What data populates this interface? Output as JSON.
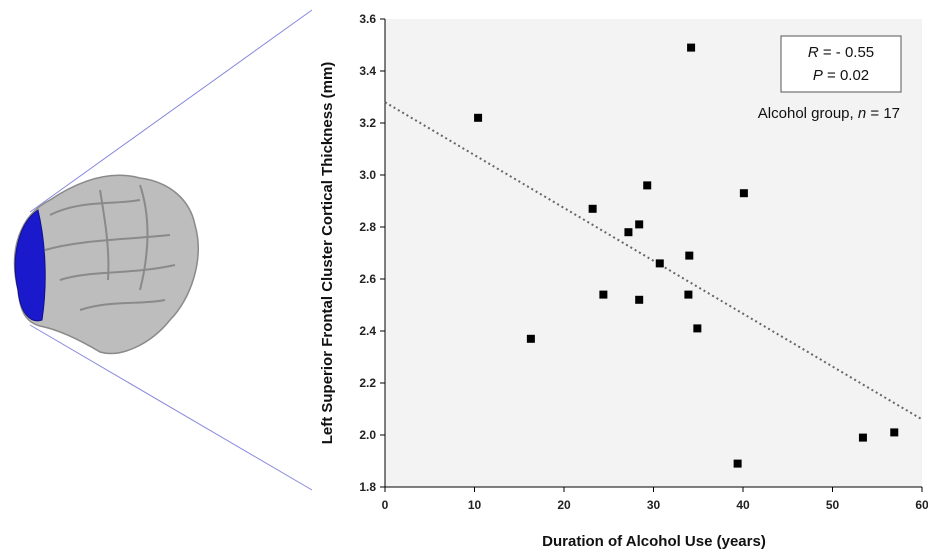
{
  "chart_data": {
    "type": "scatter",
    "x_label": "Duration of Alcohol Use (years)",
    "y_label": "Left Superior Frontal Cluster Cortical Thickness (mm)",
    "x": [
      10.4,
      16.3,
      23.2,
      24.4,
      27.2,
      28.4,
      28.4,
      29.3,
      30.7,
      33.9,
      34.0,
      34.2,
      34.9,
      39.4,
      40.1,
      53.4,
      56.9
    ],
    "values": [
      3.22,
      2.37,
      2.87,
      2.54,
      2.78,
      2.81,
      2.52,
      2.96,
      2.66,
      2.54,
      2.69,
      3.49,
      2.41,
      1.89,
      2.93,
      1.99,
      2.01
    ],
    "color": "#000000",
    "trend": {
      "x": [
        0,
        60
      ],
      "y": [
        3.28,
        2.06
      ],
      "color": "#666666"
    },
    "xlim": [
      0,
      60
    ],
    "xticks": [
      0,
      10,
      20,
      30,
      40,
      50,
      60
    ],
    "ylim": [
      1.8,
      3.6
    ],
    "yticks": [
      1.8,
      {
        "value": 2,
        "label": "2.0"
      },
      2.2,
      2.4,
      2.6,
      2.8,
      {
        "value": 3,
        "label": "3.0"
      },
      3.2,
      3.4,
      3.6
    ],
    "stats": [
      {
        "symbol": "R",
        "text": " = - 0.55"
      },
      {
        "symbol": "P",
        "text": " = 0.02"
      }
    ],
    "group_note": {
      "prefix": "Alcohol group, ",
      "symbol": "n",
      "text": " = 17"
    }
  }
}
